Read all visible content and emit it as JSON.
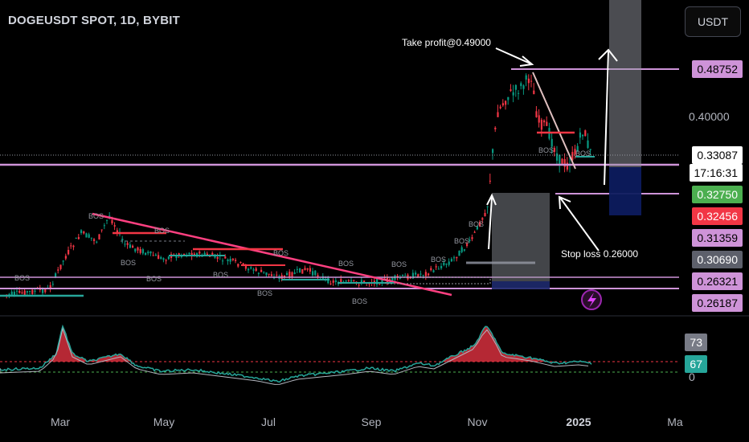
{
  "header": {
    "symbol_title": "DOGEUSDT SPOT, 1D, BYBIT",
    "currency_button": "USDT"
  },
  "annotations": {
    "take_profit": "Take profit@0.49000",
    "stop_loss": "Stop loss   0.26000"
  },
  "bos_label": "BOS",
  "price_labels": [
    {
      "text": "0.48752",
      "bg": "#ce93d8",
      "fg": "#000000"
    },
    {
      "text": "0.33087",
      "bg": "#ffffff",
      "fg": "#000000"
    },
    {
      "text": "17:16:31",
      "bg": "#ffffff",
      "fg": "#000000"
    },
    {
      "text": "0.32750",
      "bg": "#4caf50",
      "fg": "#ffffff"
    },
    {
      "text": "0.32456",
      "bg": "#f23645",
      "fg": "#ffffff"
    },
    {
      "text": "0.31359",
      "bg": "#ce93d8",
      "fg": "#000000"
    },
    {
      "text": "0.30690",
      "bg": "#5d606b",
      "fg": "#ffffff"
    },
    {
      "text": "0.26321",
      "bg": "#ce93d8",
      "fg": "#000000"
    },
    {
      "text": "0.26187",
      "bg": "#ce93d8",
      "fg": "#000000"
    }
  ],
  "price_axis_ticks": [
    "0.40000"
  ],
  "oscillator_labels": [
    {
      "text": "73",
      "bg": "#787b86",
      "fg": "#ffffff"
    },
    {
      "text": "67",
      "bg": "#26a69a",
      "fg": "#ffffff"
    }
  ],
  "oscillator_axis_ticks": [
    "0"
  ],
  "x_axis_ticks": [
    "Mar",
    "May",
    "Jul",
    "Sep",
    "Nov",
    "2025",
    "Ma"
  ],
  "colors": {
    "up": "#089981",
    "down": "#f23645",
    "level_line": "#ce93d8",
    "trend_line": "#ff4081",
    "target_box": "#1e2a6e"
  },
  "icons": {
    "flash": "lightning-icon"
  }
}
